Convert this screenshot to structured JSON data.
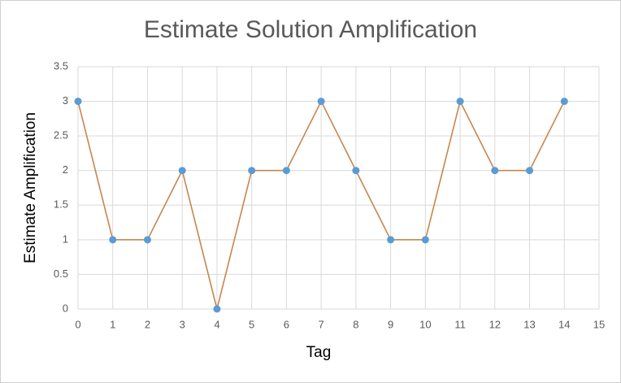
{
  "chart_data": {
    "type": "line",
    "title": "Estimate Solution Amplification",
    "x_label": "Tag",
    "y_label": "Estimate Amplification",
    "x": [
      0,
      1,
      2,
      3,
      4,
      5,
      6,
      7,
      8,
      9,
      10,
      11,
      12,
      13,
      14
    ],
    "values": [
      3,
      1,
      1,
      2,
      0,
      2,
      2,
      3,
      2,
      1,
      1,
      3,
      2,
      2,
      3
    ],
    "color": "#c4884e",
    "marker_color": "#5b9bd5",
    "xlim": [
      0,
      15
    ],
    "xticks": [
      0,
      1,
      2,
      3,
      4,
      5,
      6,
      7,
      8,
      9,
      10,
      11,
      12,
      13,
      14,
      15
    ],
    "ylim": [
      0,
      3.5
    ],
    "yticks": [
      0,
      0.5,
      1,
      1.5,
      2,
      2.5,
      3,
      3.5
    ],
    "grid": true
  }
}
